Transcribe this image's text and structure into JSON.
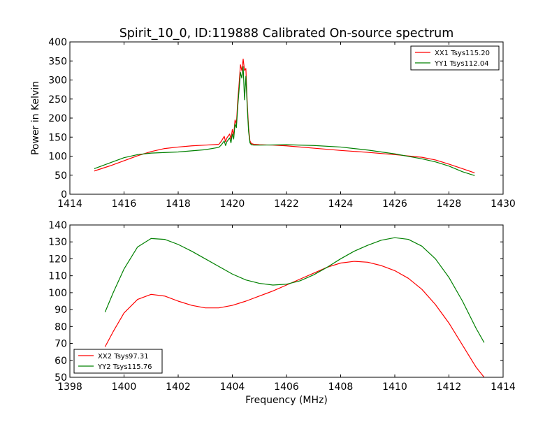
{
  "figure": {
    "title": "Spirit_10_0, ID:119888 Calibrated On-source spectrum",
    "xlabel": "Frequency (MHz)",
    "ylabel": "Power in Kelvin"
  },
  "chart_data": [
    {
      "type": "line",
      "title": "Spirit_10_0, ID:119888 Calibrated On-source spectrum",
      "xlabel": "",
      "ylabel": "Power in Kelvin",
      "xlim": [
        1414,
        1430
      ],
      "ylim": [
        0,
        400
      ],
      "xticks": [
        1414,
        1416,
        1418,
        1420,
        1422,
        1424,
        1426,
        1428,
        1430
      ],
      "yticks": [
        0,
        50,
        100,
        150,
        200,
        250,
        300,
        350,
        400
      ],
      "grid": false,
      "legend_position": "top-right",
      "series": [
        {
          "name": "XX1 Tsys115.20",
          "color": "#ff0000",
          "points": [
            [
              1414.9,
              61
            ],
            [
              1415.5,
              75
            ],
            [
              1416.0,
              88
            ],
            [
              1416.5,
              101
            ],
            [
              1417.0,
              112
            ],
            [
              1417.5,
              120
            ],
            [
              1418.0,
              124
            ],
            [
              1418.5,
              127
            ],
            [
              1419.0,
              129
            ],
            [
              1419.5,
              131
            ],
            [
              1419.6,
              140
            ],
            [
              1419.7,
              152
            ],
            [
              1419.75,
              138
            ],
            [
              1419.8,
              148
            ],
            [
              1419.9,
              158
            ],
            [
              1419.95,
              145
            ],
            [
              1420.0,
              170
            ],
            [
              1420.05,
              155
            ],
            [
              1420.1,
              195
            ],
            [
              1420.15,
              185
            ],
            [
              1420.2,
              245
            ],
            [
              1420.25,
              290
            ],
            [
              1420.3,
              340
            ],
            [
              1420.35,
              325
            ],
            [
              1420.4,
              355
            ],
            [
              1420.45,
              325
            ],
            [
              1420.5,
              330
            ],
            [
              1420.55,
              240
            ],
            [
              1420.6,
              175
            ],
            [
              1420.65,
              140
            ],
            [
              1420.7,
              133
            ],
            [
              1420.8,
              131
            ],
            [
              1421.0,
              130
            ],
            [
              1421.5,
              129
            ],
            [
              1422.0,
              127
            ],
            [
              1423.0,
              121
            ],
            [
              1424.0,
              115
            ],
            [
              1425.0,
              110
            ],
            [
              1426.0,
              104
            ],
            [
              1427.0,
              97
            ],
            [
              1427.5,
              90
            ],
            [
              1428.0,
              79
            ],
            [
              1428.5,
              67
            ],
            [
              1428.95,
              56
            ]
          ]
        },
        {
          "name": "YY1 Tsys112.04",
          "color": "#008000",
          "points": [
            [
              1414.9,
              67
            ],
            [
              1415.5,
              83
            ],
            [
              1416.0,
              96
            ],
            [
              1416.5,
              104
            ],
            [
              1417.0,
              108
            ],
            [
              1418.0,
              111
            ],
            [
              1418.5,
              114
            ],
            [
              1419.0,
              117
            ],
            [
              1419.5,
              123
            ],
            [
              1419.6,
              130
            ],
            [
              1419.7,
              140
            ],
            [
              1419.75,
              128
            ],
            [
              1419.8,
              138
            ],
            [
              1419.9,
              148
            ],
            [
              1419.95,
              135
            ],
            [
              1420.0,
              158
            ],
            [
              1420.05,
              145
            ],
            [
              1420.1,
              185
            ],
            [
              1420.15,
              175
            ],
            [
              1420.2,
              230
            ],
            [
              1420.25,
              275
            ],
            [
              1420.3,
              320
            ],
            [
              1420.35,
              305
            ],
            [
              1420.4,
              335
            ],
            [
              1420.45,
              248
            ],
            [
              1420.5,
              310
            ],
            [
              1420.55,
              230
            ],
            [
              1420.6,
              165
            ],
            [
              1420.65,
              135
            ],
            [
              1420.7,
              130
            ],
            [
              1420.8,
              129
            ],
            [
              1421.0,
              129
            ],
            [
              1422.0,
              130
            ],
            [
              1423.0,
              128
            ],
            [
              1424.0,
              124
            ],
            [
              1425.0,
              116
            ],
            [
              1426.0,
              106
            ],
            [
              1427.0,
              93
            ],
            [
              1427.5,
              85
            ],
            [
              1428.0,
              74
            ],
            [
              1428.5,
              59
            ],
            [
              1428.95,
              49
            ]
          ]
        }
      ]
    },
    {
      "type": "line",
      "title": "",
      "xlabel": "Frequency (MHz)",
      "ylabel": "",
      "xlim": [
        1398,
        1414
      ],
      "ylim": [
        50,
        140
      ],
      "xticks": [
        1398,
        1400,
        1402,
        1404,
        1406,
        1408,
        1410,
        1412,
        1414
      ],
      "yticks": [
        50,
        60,
        70,
        80,
        90,
        100,
        110,
        120,
        130,
        140
      ],
      "grid": false,
      "legend_position": "bottom-left",
      "series": [
        {
          "name": "XX2 Tsys97.31",
          "color": "#ff0000",
          "points": [
            [
              1399.3,
              68
            ],
            [
              1399.6,
              77
            ],
            [
              1400.0,
              88
            ],
            [
              1400.5,
              96
            ],
            [
              1401.0,
              99
            ],
            [
              1401.5,
              98
            ],
            [
              1402.0,
              95
            ],
            [
              1402.5,
              92.5
            ],
            [
              1403.0,
              91
            ],
            [
              1403.5,
              91
            ],
            [
              1404.0,
              92.5
            ],
            [
              1404.5,
              95
            ],
            [
              1405.0,
              98
            ],
            [
              1405.5,
              101
            ],
            [
              1406.0,
              104.5
            ],
            [
              1406.5,
              108
            ],
            [
              1407.0,
              111.5
            ],
            [
              1407.5,
              115
            ],
            [
              1408.0,
              117.5
            ],
            [
              1408.5,
              118.5
            ],
            [
              1409.0,
              118
            ],
            [
              1409.5,
              116
            ],
            [
              1410.0,
              113
            ],
            [
              1410.5,
              108.5
            ],
            [
              1411.0,
              102
            ],
            [
              1411.5,
              93
            ],
            [
              1412.0,
              82
            ],
            [
              1412.5,
              69
            ],
            [
              1413.0,
              56
            ],
            [
              1413.3,
              50
            ]
          ]
        },
        {
          "name": "YY2 Tsys115.76",
          "color": "#008000",
          "points": [
            [
              1399.3,
              88.5
            ],
            [
              1399.6,
              100
            ],
            [
              1400.0,
              114
            ],
            [
              1400.5,
              127
            ],
            [
              1401.0,
              132
            ],
            [
              1401.5,
              131.5
            ],
            [
              1402.0,
              128.5
            ],
            [
              1402.5,
              124.5
            ],
            [
              1403.0,
              120
            ],
            [
              1403.5,
              115.5
            ],
            [
              1404.0,
              111
            ],
            [
              1404.5,
              107.5
            ],
            [
              1405.0,
              105.5
            ],
            [
              1405.5,
              104.5
            ],
            [
              1406.0,
              105
            ],
            [
              1406.5,
              107
            ],
            [
              1407.0,
              110.5
            ],
            [
              1407.5,
              115
            ],
            [
              1408.0,
              120
            ],
            [
              1408.5,
              124.5
            ],
            [
              1409.0,
              128
            ],
            [
              1409.5,
              131
            ],
            [
              1410.0,
              132.5
            ],
            [
              1410.5,
              131.5
            ],
            [
              1411.0,
              127.5
            ],
            [
              1411.5,
              120
            ],
            [
              1412.0,
              109
            ],
            [
              1412.5,
              95
            ],
            [
              1413.0,
              79
            ],
            [
              1413.3,
              70.5
            ]
          ]
        }
      ]
    }
  ]
}
